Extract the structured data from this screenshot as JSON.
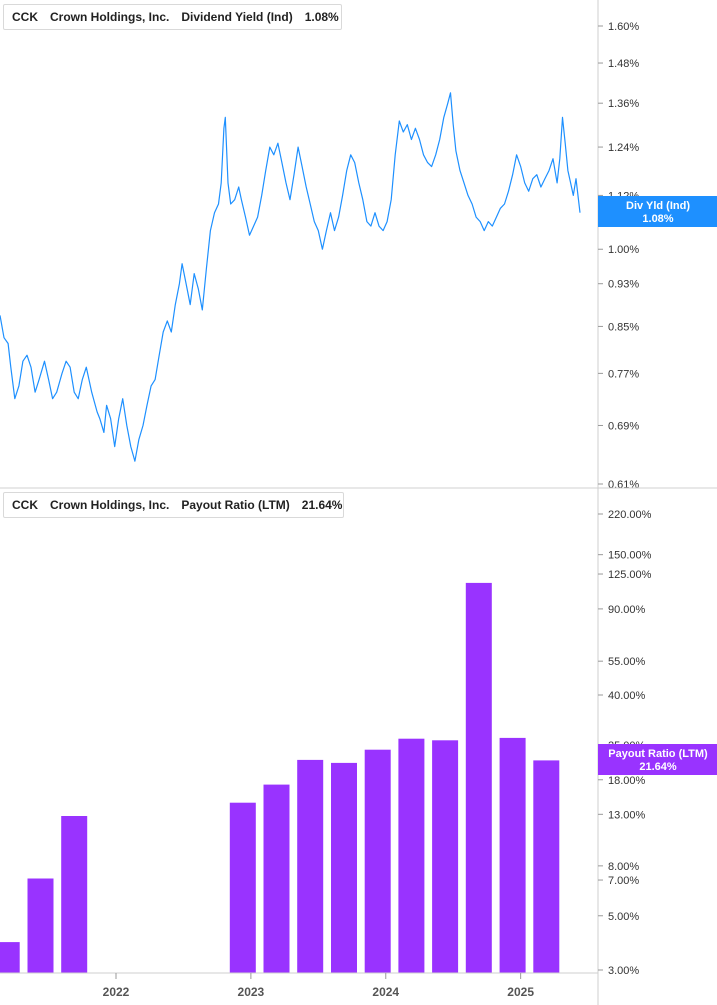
{
  "legends": [
    {
      "ticker": "CCK",
      "company": "Crown Holdings, Inc.",
      "metric": "Dividend Yield (Ind)",
      "value": "1.08%",
      "color": "#1e90ff"
    },
    {
      "ticker": "CCK",
      "company": "Crown Holdings, Inc.",
      "metric": "Payout Ratio (LTM)",
      "value": "21.64%",
      "color": "#9933ff"
    }
  ],
  "tags": [
    {
      "line1": "Div Yld (Ind)",
      "line2": "1.08%",
      "color": "#1e90ff"
    },
    {
      "line1": "Payout Ratio (LTM)",
      "line2": "21.64%",
      "color": "#9933ff"
    }
  ],
  "x_axis": {
    "ticks": [
      {
        "label": "2022",
        "t": 2022.0
      },
      {
        "label": "2023",
        "t": 2023.0
      },
      {
        "label": "2024",
        "t": 2024.0
      },
      {
        "label": "2025",
        "t": 2025.0
      }
    ]
  },
  "chart_data": [
    {
      "type": "line",
      "series": [
        {
          "name": "Dividend Yield (Ind)",
          "color": "#1e90ff"
        }
      ],
      "y_scale": "log",
      "ylim": [
        0.61,
        1.68
      ],
      "y_tick_labels": [
        "1.60%",
        "1.48%",
        "1.36%",
        "1.24%",
        "1.12%",
        "1.00%",
        "0.93%",
        "0.85%",
        "0.77%",
        "0.69%",
        "0.61%"
      ],
      "y_ticks": [
        1.6,
        1.48,
        1.36,
        1.24,
        1.12,
        1.0,
        0.93,
        0.85,
        0.77,
        0.69,
        0.61
      ],
      "xlim": [
        2021.14,
        2025.44
      ],
      "last_value": 1.08,
      "points": [
        [
          2021.14,
          0.87
        ],
        [
          2021.17,
          0.83
        ],
        [
          2021.2,
          0.82
        ],
        [
          2021.22,
          0.78
        ],
        [
          2021.25,
          0.73
        ],
        [
          2021.28,
          0.75
        ],
        [
          2021.31,
          0.79
        ],
        [
          2021.34,
          0.8
        ],
        [
          2021.37,
          0.78
        ],
        [
          2021.4,
          0.74
        ],
        [
          2021.43,
          0.76
        ],
        [
          2021.47,
          0.79
        ],
        [
          2021.5,
          0.76
        ],
        [
          2021.53,
          0.73
        ],
        [
          2021.56,
          0.74
        ],
        [
          2021.6,
          0.77
        ],
        [
          2021.63,
          0.79
        ],
        [
          2021.66,
          0.78
        ],
        [
          2021.69,
          0.74
        ],
        [
          2021.72,
          0.73
        ],
        [
          2021.75,
          0.76
        ],
        [
          2021.78,
          0.78
        ],
        [
          2021.82,
          0.74
        ],
        [
          2021.86,
          0.71
        ],
        [
          2021.88,
          0.7
        ],
        [
          2021.91,
          0.68
        ],
        [
          2021.93,
          0.72
        ],
        [
          2021.96,
          0.7
        ],
        [
          2021.99,
          0.66
        ],
        [
          2022.02,
          0.7
        ],
        [
          2022.05,
          0.73
        ],
        [
          2022.08,
          0.69
        ],
        [
          2022.11,
          0.66
        ],
        [
          2022.14,
          0.64
        ],
        [
          2022.17,
          0.67
        ],
        [
          2022.2,
          0.69
        ],
        [
          2022.23,
          0.72
        ],
        [
          2022.26,
          0.75
        ],
        [
          2022.29,
          0.76
        ],
        [
          2022.32,
          0.8
        ],
        [
          2022.35,
          0.84
        ],
        [
          2022.38,
          0.86
        ],
        [
          2022.41,
          0.84
        ],
        [
          2022.44,
          0.89
        ],
        [
          2022.47,
          0.93
        ],
        [
          2022.49,
          0.97
        ],
        [
          2022.52,
          0.93
        ],
        [
          2022.55,
          0.89
        ],
        [
          2022.58,
          0.95
        ],
        [
          2022.61,
          0.92
        ],
        [
          2022.64,
          0.88
        ],
        [
          2022.67,
          0.96
        ],
        [
          2022.7,
          1.04
        ],
        [
          2022.73,
          1.08
        ],
        [
          2022.76,
          1.1
        ],
        [
          2022.78,
          1.15
        ],
        [
          2022.8,
          1.29
        ],
        [
          2022.81,
          1.32
        ],
        [
          2022.83,
          1.15
        ],
        [
          2022.85,
          1.1
        ],
        [
          2022.88,
          1.11
        ],
        [
          2022.91,
          1.14
        ],
        [
          2022.93,
          1.11
        ],
        [
          2022.96,
          1.07
        ],
        [
          2022.99,
          1.03
        ],
        [
          2023.02,
          1.05
        ],
        [
          2023.05,
          1.07
        ],
        [
          2023.08,
          1.12
        ],
        [
          2023.11,
          1.18
        ],
        [
          2023.14,
          1.24
        ],
        [
          2023.17,
          1.22
        ],
        [
          2023.2,
          1.25
        ],
        [
          2023.23,
          1.2
        ],
        [
          2023.26,
          1.15
        ],
        [
          2023.29,
          1.11
        ],
        [
          2023.32,
          1.17
        ],
        [
          2023.35,
          1.24
        ],
        [
          2023.38,
          1.19
        ],
        [
          2023.41,
          1.14
        ],
        [
          2023.44,
          1.1
        ],
        [
          2023.47,
          1.06
        ],
        [
          2023.5,
          1.04
        ],
        [
          2023.53,
          1.0
        ],
        [
          2023.56,
          1.04
        ],
        [
          2023.59,
          1.08
        ],
        [
          2023.62,
          1.04
        ],
        [
          2023.65,
          1.07
        ],
        [
          2023.68,
          1.12
        ],
        [
          2023.71,
          1.18
        ],
        [
          2023.74,
          1.22
        ],
        [
          2023.77,
          1.2
        ],
        [
          2023.8,
          1.15
        ],
        [
          2023.83,
          1.11
        ],
        [
          2023.86,
          1.06
        ],
        [
          2023.89,
          1.05
        ],
        [
          2023.92,
          1.08
        ],
        [
          2023.95,
          1.05
        ],
        [
          2023.98,
          1.04
        ],
        [
          2024.01,
          1.06
        ],
        [
          2024.04,
          1.11
        ],
        [
          2024.07,
          1.22
        ],
        [
          2024.1,
          1.31
        ],
        [
          2024.13,
          1.28
        ],
        [
          2024.16,
          1.3
        ],
        [
          2024.19,
          1.26
        ],
        [
          2024.22,
          1.29
        ],
        [
          2024.25,
          1.26
        ],
        [
          2024.28,
          1.22
        ],
        [
          2024.31,
          1.2
        ],
        [
          2024.34,
          1.19
        ],
        [
          2024.37,
          1.22
        ],
        [
          2024.4,
          1.26
        ],
        [
          2024.43,
          1.32
        ],
        [
          2024.46,
          1.36
        ],
        [
          2024.48,
          1.39
        ],
        [
          2024.5,
          1.3
        ],
        [
          2024.52,
          1.23
        ],
        [
          2024.55,
          1.18
        ],
        [
          2024.58,
          1.15
        ],
        [
          2024.61,
          1.12
        ],
        [
          2024.64,
          1.1
        ],
        [
          2024.67,
          1.07
        ],
        [
          2024.7,
          1.06
        ],
        [
          2024.73,
          1.04
        ],
        [
          2024.76,
          1.06
        ],
        [
          2024.79,
          1.05
        ],
        [
          2024.82,
          1.07
        ],
        [
          2024.85,
          1.09
        ],
        [
          2024.88,
          1.1
        ],
        [
          2024.91,
          1.13
        ],
        [
          2024.94,
          1.17
        ],
        [
          2024.97,
          1.22
        ],
        [
          2025.0,
          1.19
        ],
        [
          2025.03,
          1.15
        ],
        [
          2025.06,
          1.13
        ],
        [
          2025.09,
          1.16
        ],
        [
          2025.12,
          1.17
        ],
        [
          2025.15,
          1.14
        ],
        [
          2025.18,
          1.16
        ],
        [
          2025.21,
          1.18
        ],
        [
          2025.24,
          1.21
        ],
        [
          2025.27,
          1.15
        ],
        [
          2025.29,
          1.21
        ],
        [
          2025.31,
          1.32
        ],
        [
          2025.33,
          1.25
        ],
        [
          2025.35,
          1.18
        ],
        [
          2025.37,
          1.15
        ],
        [
          2025.39,
          1.12
        ],
        [
          2025.41,
          1.16
        ],
        [
          2025.44,
          1.08
        ]
      ]
    },
    {
      "type": "bar",
      "series": [
        {
          "name": "Payout Ratio (LTM)",
          "color": "#9933ff"
        }
      ],
      "y_scale": "log",
      "ylim": [
        2.95,
        250
      ],
      "y_tick_labels": [
        "220.00%",
        "150.00%",
        "125.00%",
        "90.00%",
        "55.00%",
        "40.00%",
        "25.00%",
        "18.00%",
        "13.00%",
        "8.00%",
        "7.00%",
        "5.00%",
        "3.00%"
      ],
      "y_ticks": [
        220,
        150,
        125,
        90,
        55,
        40,
        25,
        18,
        13,
        8,
        7,
        5,
        3
      ],
      "xlim": [
        2021.14,
        2025.44
      ],
      "last_value": 21.64,
      "bars": [
        {
          "t": 2021.19,
          "value": 3.9
        },
        {
          "t": 2021.44,
          "value": 7.1
        },
        {
          "t": 2021.69,
          "value": 12.8
        },
        {
          "t": 2022.94,
          "value": 14.5
        },
        {
          "t": 2023.19,
          "value": 17.2
        },
        {
          "t": 2023.44,
          "value": 21.7
        },
        {
          "t": 2023.69,
          "value": 21.1
        },
        {
          "t": 2023.94,
          "value": 23.9
        },
        {
          "t": 2024.19,
          "value": 26.5
        },
        {
          "t": 2024.44,
          "value": 26.1
        },
        {
          "t": 2024.69,
          "value": 115
        },
        {
          "t": 2024.94,
          "value": 26.7
        },
        {
          "t": 2025.19,
          "value": 21.6
        }
      ]
    }
  ]
}
